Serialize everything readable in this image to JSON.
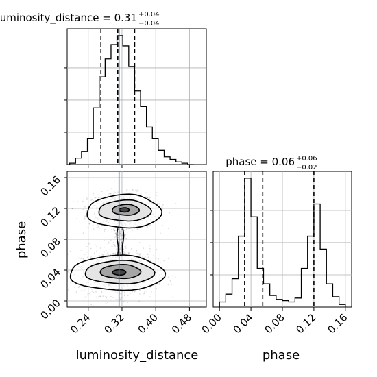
{
  "chart_data": {
    "type": "corner",
    "truth_color": "#3b75af",
    "line_color": "#000000",
    "grid": true,
    "panels": [
      {
        "kind": "histogram",
        "parameter": "luminosity_distance",
        "title_text": "luminosity_distance = 0.31",
        "title_err_plus": "+0.04",
        "title_err_minus": "−0.04",
        "xlim": [
          0.19,
          0.52
        ],
        "bin_edges": [
          0.196,
          0.21,
          0.224,
          0.238,
          0.252,
          0.266,
          0.28,
          0.294,
          0.308,
          0.322,
          0.336,
          0.35,
          0.364,
          0.378,
          0.392,
          0.406,
          0.42,
          0.434,
          0.448,
          0.462,
          0.476,
          0.49
        ],
        "relative_counts": [
          0.01,
          0.05,
          0.1,
          0.2,
          0.44,
          0.68,
          0.82,
          0.93,
          1.0,
          0.92,
          0.76,
          0.57,
          0.45,
          0.29,
          0.2,
          0.11,
          0.06,
          0.04,
          0.02,
          0.01,
          0.0
        ],
        "quantiles": [
          0.27,
          0.31,
          0.35
        ],
        "truth": 0.313
      },
      {
        "kind": "histogram",
        "parameter": "phase",
        "title_text": "phase = 0.06",
        "title_err_plus": "+0.06",
        "title_err_minus": "−0.02",
        "xlim": [
          -0.008,
          0.168
        ],
        "xticks": [
          0.0,
          0.04,
          0.08,
          0.12,
          0.16
        ],
        "xtick_labels": [
          "0.00",
          "0.04",
          "0.08",
          "0.12",
          "0.16"
        ],
        "xlabel": "phase",
        "bin_edges": [
          0.0,
          0.008,
          0.016,
          0.024,
          0.032,
          0.04,
          0.048,
          0.056,
          0.064,
          0.072,
          0.08,
          0.088,
          0.096,
          0.104,
          0.112,
          0.12,
          0.128,
          0.136,
          0.144,
          0.152,
          0.16
        ],
        "relative_counts": [
          0.04,
          0.1,
          0.22,
          0.55,
          1.0,
          0.7,
          0.3,
          0.18,
          0.09,
          0.06,
          0.05,
          0.04,
          0.07,
          0.3,
          0.55,
          0.8,
          0.45,
          0.18,
          0.08,
          0.02
        ],
        "quantiles": [
          0.032,
          0.055,
          0.12
        ]
      },
      {
        "kind": "2d",
        "x_parameter": "luminosity_distance",
        "y_parameter": "phase",
        "xlim": [
          0.19,
          0.52
        ],
        "ylim": [
          -0.008,
          0.168
        ],
        "xticks": [
          0.24,
          0.32,
          0.4,
          0.48
        ],
        "xtick_labels": [
          "0.24",
          "0.32",
          "0.40",
          "0.48"
        ],
        "yticks": [
          0.0,
          0.04,
          0.08,
          0.12,
          0.16
        ],
        "ytick_labels": [
          "0.00",
          "0.04",
          "0.08",
          "0.12",
          "0.16"
        ],
        "xlabel": "luminosity_distance",
        "ylabel": "phase",
        "truth_x": 0.313,
        "density_modes": [
          {
            "x": 0.32,
            "y": 0.117,
            "sx": 0.03,
            "sy": 0.0085,
            "weight": 1.0
          },
          {
            "x": 0.31,
            "y": 0.037,
            "sx": 0.034,
            "sy": 0.011,
            "weight": 1.1
          }
        ],
        "contour_levels": [
          {
            "level": "outer",
            "fill": "#ffffff",
            "modes": [
              {
                "x": 0.322,
                "y": 0.116,
                "rx": 0.088,
                "ry": 0.0215
              },
              {
                "x": 0.305,
                "y": 0.036,
                "rx": 0.112,
                "ry": 0.0225
              }
            ]
          },
          {
            "level": "second",
            "fill": "#e2e2e2",
            "modes": [
              {
                "x": 0.325,
                "y": 0.117,
                "rx": 0.062,
                "ry": 0.0135
              },
              {
                "x": 0.312,
                "y": 0.037,
                "rx": 0.082,
                "ry": 0.015
              }
            ]
          },
          {
            "level": "third",
            "fill": "#9d9d9d",
            "modes": [
              {
                "x": 0.328,
                "y": 0.118,
                "rx": 0.032,
                "ry": 0.007
              },
              {
                "x": 0.315,
                "y": 0.038,
                "rx": 0.048,
                "ry": 0.009
              }
            ]
          },
          {
            "level": "core",
            "fill": "#3c3c3c",
            "modes": [
              {
                "x": 0.325,
                "y": 0.118,
                "rx": 0.012,
                "ry": 0.0028
              },
              {
                "x": 0.313,
                "y": 0.037,
                "rx": 0.016,
                "ry": 0.0035
              }
            ]
          }
        ],
        "bridge": {
          "x": 0.316,
          "y_from": 0.06,
          "y_to": 0.094,
          "half_width": 0.006
        }
      }
    ]
  }
}
